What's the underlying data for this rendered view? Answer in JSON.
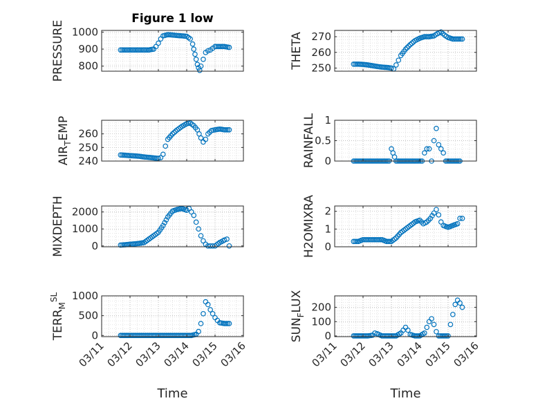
{
  "colors": {
    "marker": "#0072BD",
    "axis": "#262626",
    "grid": "#b0b0b0"
  },
  "xticks": [
    "03/11",
    "03/12",
    "03/13",
    "03/14",
    "03/15",
    "03/16"
  ],
  "xlabel": "Time",
  "chart_data": [
    {
      "type": "scatter",
      "title": "Figure 1 low",
      "ylabel": {
        "base": "PRESSURE",
        "sub": "",
        "tail": ""
      },
      "ylim": [
        770,
        1010
      ],
      "yticks": [
        "800",
        "900",
        "1000"
      ],
      "ytick_vals": [
        800,
        900,
        1000
      ],
      "grid": true,
      "x": [
        "2023-03-11T16:00",
        "2023-03-11T20:00",
        "2023-03-12T00:00",
        "2023-03-12T04:00",
        "2023-03-12T08:00",
        "2023-03-12T12:00",
        "2023-03-12T16:00",
        "2023-03-12T20:00",
        "2023-03-12T22:00",
        "2023-03-13T00:00",
        "2023-03-13T02:00",
        "2023-03-13T04:00",
        "2023-03-13T08:00",
        "2023-03-13T12:00",
        "2023-03-13T16:00",
        "2023-03-13T20:00",
        "2023-03-14T00:00",
        "2023-03-14T03:00",
        "2023-03-14T05:00",
        "2023-03-14T06:00",
        "2023-03-14T07:00",
        "2023-03-14T08:00",
        "2023-03-14T09:00",
        "2023-03-14T10:00",
        "2023-03-14T11:00",
        "2023-03-14T12:00",
        "2023-03-14T14:00",
        "2023-03-14T16:00",
        "2023-03-14T18:00",
        "2023-03-14T20:00",
        "2023-03-14T22:00",
        "2023-03-15T00:00",
        "2023-03-15T04:00",
        "2023-03-15T08:00",
        "2023-03-15T12:00"
      ],
      "y": [
        895,
        895,
        895,
        895,
        895,
        895,
        895,
        900,
        915,
        935,
        960,
        978,
        985,
        983,
        980,
        978,
        975,
        960,
        930,
        900,
        870,
        840,
        810,
        790,
        775,
        800,
        840,
        880,
        890,
        895,
        905,
        915,
        915,
        915,
        910
      ]
    },
    {
      "type": "scatter",
      "title": "",
      "ylabel": {
        "base": "THETA",
        "sub": "",
        "tail": ""
      },
      "ylim": [
        248,
        274
      ],
      "yticks": [
        "250",
        "260",
        "270"
      ],
      "ytick_vals": [
        250,
        260,
        270
      ],
      "grid": true,
      "x": [
        "2023-03-11T16:00",
        "2023-03-11T20:00",
        "2023-03-12T00:00",
        "2023-03-12T04:00",
        "2023-03-12T08:00",
        "2023-03-12T12:00",
        "2023-03-12T16:00",
        "2023-03-12T20:00",
        "2023-03-13T00:00",
        "2023-03-13T02:00",
        "2023-03-13T04:00",
        "2023-03-13T06:00",
        "2023-03-13T08:00",
        "2023-03-13T12:00",
        "2023-03-13T16:00",
        "2023-03-13T20:00",
        "2023-03-14T00:00",
        "2023-03-14T04:00",
        "2023-03-14T08:00",
        "2023-03-14T12:00",
        "2023-03-14T15:00",
        "2023-03-14T18:00",
        "2023-03-14T21:00",
        "2023-03-15T00:00",
        "2023-03-15T04:00",
        "2023-03-15T08:00",
        "2023-03-15T12:00"
      ],
      "y": [
        252.5,
        252.5,
        252.3,
        252,
        251.5,
        251,
        250.6,
        250.4,
        250,
        249.5,
        252,
        255,
        258,
        262,
        265,
        267.5,
        269,
        270,
        270,
        270.5,
        272,
        273,
        271,
        269.5,
        268.5,
        268.5,
        268.5
      ]
    },
    {
      "type": "scatter",
      "title": "",
      "ylabel": {
        "base": "AIR",
        "sub": "T",
        "tail": "EMP"
      },
      "ylim": [
        240,
        270
      ],
      "yticks": [
        "240",
        "250",
        "260"
      ],
      "ytick_vals": [
        240,
        250,
        260
      ],
      "grid": true,
      "x": [
        "2023-03-11T16:00",
        "2023-03-11T20:00",
        "2023-03-12T00:00",
        "2023-03-12T04:00",
        "2023-03-12T08:00",
        "2023-03-12T12:00",
        "2023-03-12T16:00",
        "2023-03-12T20:00",
        "2023-03-13T00:00",
        "2023-03-13T02:00",
        "2023-03-13T04:00",
        "2023-03-13T06:00",
        "2023-03-13T08:00",
        "2023-03-13T12:00",
        "2023-03-13T16:00",
        "2023-03-13T20:00",
        "2023-03-14T00:00",
        "2023-03-14T03:00",
        "2023-03-14T06:00",
        "2023-03-14T09:00",
        "2023-03-14T12:00",
        "2023-03-14T14:00",
        "2023-03-14T16:00",
        "2023-03-14T18:00",
        "2023-03-14T21:00",
        "2023-03-15T00:00",
        "2023-03-15T04:00",
        "2023-03-15T08:00",
        "2023-03-15T12:00"
      ],
      "y": [
        244.5,
        244.3,
        244,
        243.8,
        243.5,
        243,
        242.7,
        242.3,
        242,
        242.5,
        245,
        251,
        256,
        260,
        263,
        265.5,
        267.5,
        268,
        266,
        263,
        257,
        254,
        256,
        260,
        262.5,
        263,
        263.5,
        263,
        263
      ]
    },
    {
      "type": "scatter",
      "title": "",
      "ylabel": {
        "base": "RAINFALL",
        "sub": "",
        "tail": ""
      },
      "ylim": [
        0,
        1
      ],
      "yticks": [
        "0",
        "0.5",
        "1"
      ],
      "ytick_vals": [
        0,
        0.5,
        1
      ],
      "grid": true,
      "x": [
        "2023-03-11T16:00",
        "2023-03-11T22:00",
        "2023-03-12T04:00",
        "2023-03-12T10:00",
        "2023-03-12T16:00",
        "2023-03-12T22:00",
        "2023-03-13T04:00",
        "2023-03-13T10:00",
        "2023-03-13T16:00",
        "2023-03-13T22:00",
        "2023-03-14T02:00",
        "2023-03-14T04:00",
        "2023-03-14T06:00",
        "2023-03-14T08:00",
        "2023-03-14T10:00",
        "2023-03-14T12:00",
        "2023-03-14T14:00",
        "2023-03-14T16:00",
        "2023-03-14T18:00",
        "2023-03-14T20:00",
        "2023-03-14T22:00",
        "2023-03-15T04:00",
        "2023-03-15T10:00",
        "2023-03-13T00:00"
      ],
      "y": [
        0,
        0,
        0,
        0,
        0,
        0,
        0,
        0,
        0,
        0,
        0,
        0.2,
        0.3,
        0.3,
        0,
        0.5,
        0.8,
        0.4,
        0.3,
        0.2,
        0,
        0,
        0,
        0.3
      ]
    },
    {
      "type": "scatter",
      "title": "",
      "ylabel": {
        "base": "MIXDEPTH",
        "sub": "",
        "tail": ""
      },
      "ylim": [
        -50,
        2350
      ],
      "yticks": [
        "0",
        "1000",
        "2000"
      ],
      "ytick_vals": [
        0,
        1000,
        2000
      ],
      "grid": true,
      "x": [
        "2023-03-11T16:00",
        "2023-03-11T20:00",
        "2023-03-12T00:00",
        "2023-03-12T04:00",
        "2023-03-12T08:00",
        "2023-03-12T12:00",
        "2023-03-12T16:00",
        "2023-03-12T20:00",
        "2023-03-13T00:00",
        "2023-03-13T04:00",
        "2023-03-13T08:00",
        "2023-03-13T12:00",
        "2023-03-13T16:00",
        "2023-03-13T20:00",
        "2023-03-14T00:00",
        "2023-03-14T02:00",
        "2023-03-14T04:00",
        "2023-03-14T06:00",
        "2023-03-14T08:00",
        "2023-03-14T10:00",
        "2023-03-14T12:00",
        "2023-03-14T14:00",
        "2023-03-14T16:00",
        "2023-03-14T18:00",
        "2023-03-14T20:00",
        "2023-03-14T22:00",
        "2023-03-15T00:00",
        "2023-03-15T04:00",
        "2023-03-15T08:00",
        "2023-03-15T10:00",
        "2023-03-15T12:00"
      ],
      "y": [
        50,
        70,
        100,
        120,
        150,
        200,
        400,
        600,
        800,
        1200,
        1700,
        2050,
        2150,
        2200,
        2100,
        2200,
        2000,
        1800,
        1400,
        1000,
        600,
        300,
        100,
        0,
        0,
        0,
        0,
        200,
        350,
        400,
        0
      ]
    },
    {
      "type": "scatter",
      "title": "",
      "ylabel": {
        "base": "H2OMIXRA",
        "sub": "",
        "tail": ""
      },
      "ylim": [
        0,
        2.3
      ],
      "yticks": [
        "0",
        "1",
        "2"
      ],
      "ytick_vals": [
        0,
        1,
        2
      ],
      "grid": true,
      "x": [
        "2023-03-11T16:00",
        "2023-03-11T20:00",
        "2023-03-12T00:00",
        "2023-03-12T04:00",
        "2023-03-12T08:00",
        "2023-03-12T12:00",
        "2023-03-12T16:00",
        "2023-03-12T20:00",
        "2023-03-13T00:00",
        "2023-03-13T04:00",
        "2023-03-13T08:00",
        "2023-03-13T12:00",
        "2023-03-13T16:00",
        "2023-03-13T20:00",
        "2023-03-14T00:00",
        "2023-03-14T03:00",
        "2023-03-14T06:00",
        "2023-03-14T09:00",
        "2023-03-14T12:00",
        "2023-03-14T14:00",
        "2023-03-14T16:00",
        "2023-03-14T18:00",
        "2023-03-14T20:00",
        "2023-03-15T00:00",
        "2023-03-15T04:00",
        "2023-03-15T08:00",
        "2023-03-15T10:00",
        "2023-03-15T12:00"
      ],
      "y": [
        0.3,
        0.3,
        0.4,
        0.4,
        0.4,
        0.4,
        0.4,
        0.3,
        0.3,
        0.5,
        0.8,
        1.0,
        1.2,
        1.4,
        1.5,
        1.3,
        1.4,
        1.6,
        1.9,
        2.1,
        1.8,
        1.4,
        1.2,
        1.1,
        1.2,
        1.3,
        1.6,
        1.6
      ]
    },
    {
      "type": "scatter",
      "title": "",
      "ylabel": {
        "base": "TERR",
        "sub": "M",
        "tail": "SL",
        "tail_sup": true
      },
      "ylim": [
        -30,
        1000
      ],
      "yticks": [
        "0",
        "500",
        "1000"
      ],
      "ytick_vals": [
        0,
        500,
        1000
      ],
      "grid": true,
      "x": [
        "2023-03-11T16:00",
        "2023-03-11T22:00",
        "2023-03-12T04:00",
        "2023-03-12T10:00",
        "2023-03-12T16:00",
        "2023-03-12T22:00",
        "2023-03-13T04:00",
        "2023-03-13T10:00",
        "2023-03-13T16:00",
        "2023-03-13T22:00",
        "2023-03-14T04:00",
        "2023-03-14T08:00",
        "2023-03-14T10:00",
        "2023-03-14T12:00",
        "2023-03-14T14:00",
        "2023-03-14T16:00",
        "2023-03-14T18:00",
        "2023-03-14T20:00",
        "2023-03-14T22:00",
        "2023-03-15T00:00",
        "2023-03-15T02:00",
        "2023-03-15T04:00",
        "2023-03-15T08:00",
        "2023-03-15T12:00"
      ],
      "y": [
        0,
        0,
        0,
        0,
        0,
        0,
        0,
        0,
        0,
        0,
        0,
        30,
        100,
        300,
        550,
        850,
        780,
        650,
        550,
        450,
        380,
        320,
        300,
        300
      ]
    },
    {
      "type": "scatter",
      "title": "",
      "ylabel": {
        "base": "SUN",
        "sub": "F",
        "tail": "LUX"
      },
      "ylim": [
        -5,
        280
      ],
      "yticks": [
        "0",
        "100",
        "200"
      ],
      "ytick_vals": [
        0,
        100,
        200
      ],
      "grid": true,
      "x": [
        "2023-03-11T16:00",
        "2023-03-11T22:00",
        "2023-03-12T04:00",
        "2023-03-12T08:00",
        "2023-03-12T10:00",
        "2023-03-12T12:00",
        "2023-03-12T16:00",
        "2023-03-12T22:00",
        "2023-03-13T04:00",
        "2023-03-13T08:00",
        "2023-03-13T10:00",
        "2023-03-13T12:00",
        "2023-03-13T14:00",
        "2023-03-13T16:00",
        "2023-03-13T20:00",
        "2023-03-14T00:00",
        "2023-03-14T04:00",
        "2023-03-14T06:00",
        "2023-03-14T08:00",
        "2023-03-14T10:00",
        "2023-03-14T12:00",
        "2023-03-14T14:00",
        "2023-03-14T16:00",
        "2023-03-14T20:00",
        "2023-03-15T00:00",
        "2023-03-15T02:00",
        "2023-03-15T04:00",
        "2023-03-15T06:00",
        "2023-03-15T08:00",
        "2023-03-15T10:00",
        "2023-03-15T12:00"
      ],
      "y": [
        0,
        0,
        0,
        5,
        20,
        15,
        0,
        0,
        0,
        20,
        40,
        60,
        40,
        10,
        0,
        0,
        20,
        60,
        100,
        120,
        80,
        30,
        0,
        0,
        0,
        80,
        150,
        220,
        250,
        230,
        200
      ]
    }
  ]
}
